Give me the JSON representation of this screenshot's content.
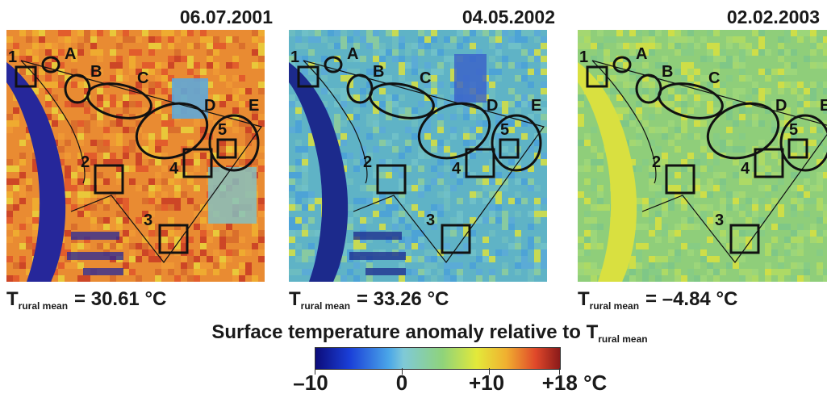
{
  "panels": [
    {
      "date": "06.07.2001",
      "t_label_main": "T",
      "t_label_sub": "rural mean",
      "t_value": "= 30.61 °C",
      "base_color": "#e98b32",
      "river_color": "#26279a",
      "variant": "hot"
    },
    {
      "date": "04.05.2002",
      "t_label_main": "T",
      "t_label_sub": "rural mean",
      "t_value": "= 33.26 °C",
      "base_color": "#5fb3c6",
      "river_color": "#1c2a8c",
      "variant": "mid"
    },
    {
      "date": "02.02.2003",
      "t_label_main": "T",
      "t_label_sub": "rural mean",
      "t_value": "= –4.84 °C",
      "base_color": "#8fce7a",
      "river_color": "#d9e040",
      "variant": "cold"
    }
  ],
  "markers": {
    "squares": [
      "1",
      "2",
      "3",
      "4",
      "5"
    ],
    "ellipses": [
      "A",
      "B",
      "C",
      "D",
      "E"
    ]
  },
  "caption": {
    "main": "Surface temperature anomaly relative to T",
    "sub": "rural mean"
  },
  "colorbar": {
    "ticks": [
      "–10",
      "0",
      "+10",
      "+18 °C"
    ],
    "range": [
      -10,
      18
    ]
  }
}
